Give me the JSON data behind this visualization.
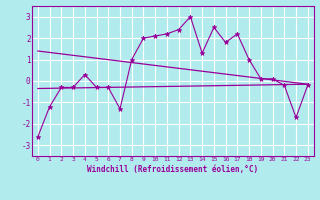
{
  "title": "",
  "xlabel": "Windchill (Refroidissement éolien,°C)",
  "ylabel": "",
  "bg_color": "#b2ebee",
  "line_color": "#990099",
  "grid_color": "#ffffff",
  "xlim": [
    -0.5,
    23.5
  ],
  "ylim": [
    -3.5,
    3.5
  ],
  "yticks": [
    -3,
    -2,
    -1,
    0,
    1,
    2,
    3
  ],
  "xticks": [
    0,
    1,
    2,
    3,
    4,
    5,
    6,
    7,
    8,
    9,
    10,
    11,
    12,
    13,
    14,
    15,
    16,
    17,
    18,
    19,
    20,
    21,
    22,
    23
  ],
  "xtick_labels": [
    "0",
    "1",
    "2",
    "3",
    "4",
    "5",
    "6",
    "7",
    "8",
    "9",
    "10",
    "11",
    "12",
    "13",
    "14",
    "15",
    "16",
    "17",
    "18",
    "19",
    "20",
    "21",
    "22",
    "23"
  ],
  "data_x": [
    0,
    1,
    2,
    3,
    4,
    5,
    6,
    7,
    8,
    9,
    10,
    11,
    12,
    13,
    14,
    15,
    16,
    17,
    18,
    19,
    20,
    21,
    22,
    23
  ],
  "data_y": [
    -2.6,
    -1.2,
    -0.3,
    -0.3,
    0.3,
    -0.3,
    -0.3,
    -1.3,
    1.0,
    2.0,
    2.1,
    2.2,
    2.4,
    3.0,
    1.3,
    2.5,
    1.8,
    2.2,
    1.0,
    0.1,
    0.1,
    -0.2,
    -1.7,
    -0.2
  ],
  "trend1_x": [
    0,
    23
  ],
  "trend1_y": [
    1.4,
    -0.15
  ],
  "trend2_x": [
    0,
    23
  ],
  "trend2_y": [
    -0.35,
    -0.15
  ]
}
